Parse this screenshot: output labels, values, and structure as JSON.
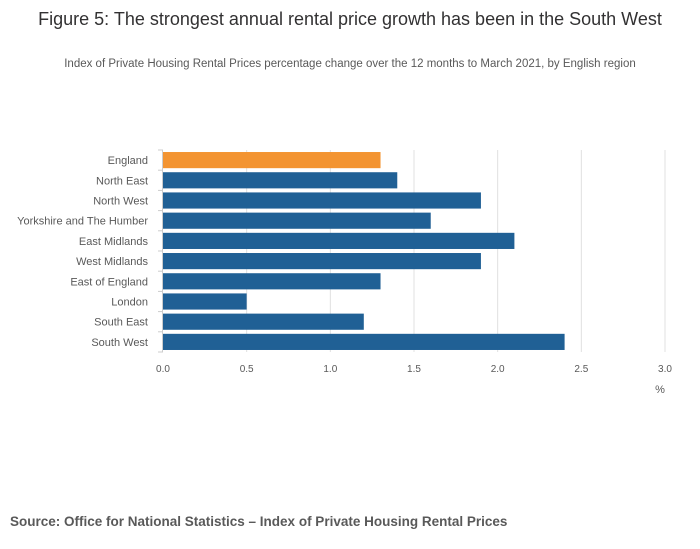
{
  "title": "Figure 5: The strongest annual rental price growth has been in the South West",
  "subtitle": "Index of Private Housing Rental Prices percentage change over the 12 months to March 2021, by English region",
  "source": "Source: Office for National Statistics – Index of Private Housing Rental Prices",
  "colors": {
    "highlight": "#f39431",
    "bar": "#206095",
    "grid": "#e0e0e0",
    "text": "#595959"
  },
  "chart_data": {
    "type": "bar",
    "orientation": "horizontal",
    "categories": [
      "England",
      "North East",
      "North West",
      "Yorkshire and The Humber",
      "East Midlands",
      "West Midlands",
      "East of England",
      "London",
      "South East",
      "South West"
    ],
    "values": [
      1.3,
      1.4,
      1.9,
      1.6,
      2.1,
      1.9,
      1.3,
      0.5,
      1.2,
      2.4
    ],
    "highlight": [
      "England"
    ],
    "xlim": [
      0,
      3.0
    ],
    "xticks": [
      "0.0",
      "0.5",
      "1.0",
      "1.5",
      "2.0",
      "2.5",
      "3.0"
    ],
    "xlabel": "%",
    "grid": true
  }
}
